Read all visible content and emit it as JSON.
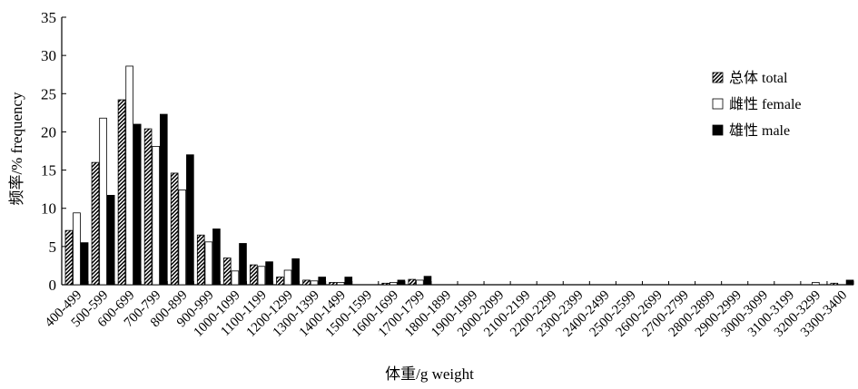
{
  "chart_data": {
    "type": "bar",
    "xlabel": "体重/g weight",
    "ylabel": "频率/% frequency",
    "ylim": [
      0,
      35
    ],
    "yticks": [
      0,
      5,
      10,
      15,
      20,
      25,
      30,
      35
    ],
    "grid": false,
    "legend_position": "right",
    "categories": [
      "400-499",
      "500-599",
      "600-699",
      "700-799",
      "800-899",
      "900-999",
      "1000-1099",
      "1100-1199",
      "1200-1299",
      "1300-1399",
      "1400-1499",
      "1500-1599",
      "1600-1699",
      "1700-1799",
      "1800-1899",
      "1900-1999",
      "2000-2099",
      "2100-2199",
      "2200-2299",
      "2300-2399",
      "2400-2499",
      "2500-2599",
      "2600-2699",
      "2700-2799",
      "2800-2899",
      "2900-2999",
      "3000-3099",
      "3100-3199",
      "3200-3299",
      "3300-3400"
    ],
    "series": [
      {
        "name": "总体 total",
        "pattern": "hatched",
        "values": [
          7.1,
          16.0,
          24.2,
          20.4,
          14.6,
          6.5,
          3.5,
          2.6,
          1.0,
          0.6,
          0.3,
          0,
          0.2,
          0.7,
          0,
          0,
          0,
          0,
          0,
          0,
          0,
          0,
          0,
          0,
          0,
          0,
          0,
          0,
          0,
          0.2
        ]
      },
      {
        "name": "雌性 female",
        "pattern": "white",
        "values": [
          9.4,
          21.8,
          28.6,
          18.1,
          12.4,
          5.6,
          1.8,
          2.4,
          1.9,
          0.5,
          0.3,
          0,
          0.3,
          0.6,
          0,
          0,
          0,
          0,
          0,
          0,
          0,
          0,
          0,
          0,
          0,
          0,
          0,
          0,
          0.3,
          0
        ]
      },
      {
        "name": "雄性 male",
        "pattern": "black",
        "values": [
          5.5,
          11.7,
          21.0,
          22.3,
          17.0,
          7.3,
          5.4,
          3.0,
          3.4,
          1.0,
          1.0,
          0,
          0.6,
          1.1,
          0,
          0,
          0,
          0,
          0,
          0,
          0,
          0,
          0,
          0,
          0,
          0,
          0,
          0,
          0,
          0.6
        ]
      }
    ]
  }
}
